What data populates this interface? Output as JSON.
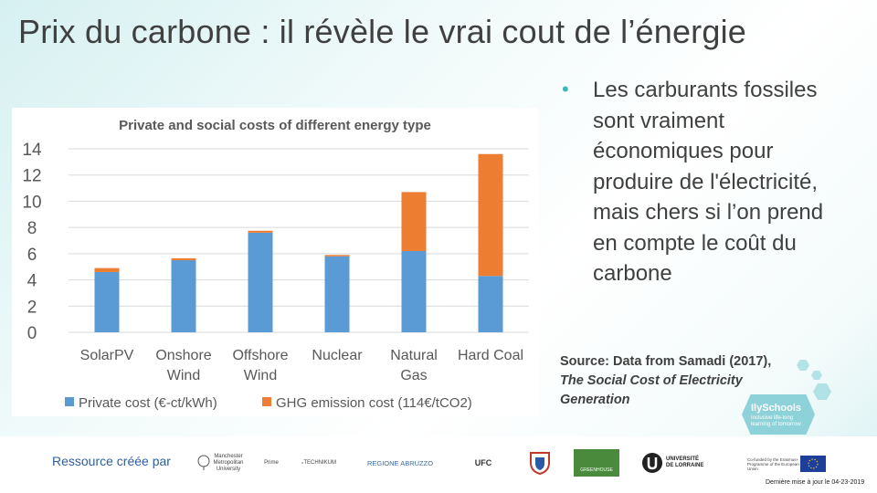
{
  "slide": {
    "title": "Prix du carbone : il révèle le vrai cout de l’énergie",
    "bullet": "Les carburants fossiles sont vraiment économiques pour produire de l'électricité, mais chers si l’on prend en compte le coût du carbone",
    "source_line1": "Source: Data from Samadi (2017),",
    "source_line2": "The Social Cost of Electricity Generation",
    "resource_label": "Ressource créée par",
    "update_text": "Dernière mise à jour le 04-23-2019",
    "ilyschools_name": "IlySchools",
    "ilyschools_tagline": "Inclusive life-long learning of tomorrow",
    "logos": [
      "Manchester Metropolitan University",
      "Prime",
      "TECHNIKUM",
      "REGIONE ABRUZZO",
      "UFC",
      "Coat of arms",
      "GREENHOUSE",
      "UNIVERSITÉ DE LORRAINE",
      "Co-funded by the Erasmus+ Programme of the European Union"
    ],
    "accent_color": "#3fb7b8"
  },
  "chart_data": {
    "type": "bar",
    "stacked": true,
    "title": "Private and social costs of different energy type",
    "categories": [
      "SolarPV",
      "Onshore Wind",
      "Offshore Wind",
      "Nuclear",
      "Natural Gas",
      "Hard Coal"
    ],
    "category_lines": [
      [
        "SolarPV"
      ],
      [
        "Onshore",
        "Wind"
      ],
      [
        "Offshore",
        "Wind"
      ],
      [
        "Nuclear"
      ],
      [
        "Natural",
        "Gas"
      ],
      [
        "Hard Coal"
      ]
    ],
    "series": [
      {
        "name": "Private cost (€-ct/kWh)",
        "color": "#5b9bd5",
        "values": [
          4.6,
          5.5,
          7.6,
          5.8,
          6.2,
          4.3
        ]
      },
      {
        "name": "GHG emission cost (114€/tCO2)",
        "color": "#ed7d31",
        "values": [
          0.3,
          0.15,
          0.15,
          0.1,
          4.5,
          9.3
        ]
      }
    ],
    "yticks": [
      0,
      2,
      4,
      6,
      8,
      10,
      12,
      14
    ],
    "ylim": [
      0,
      14
    ],
    "grid": true,
    "legend": "bottom"
  }
}
